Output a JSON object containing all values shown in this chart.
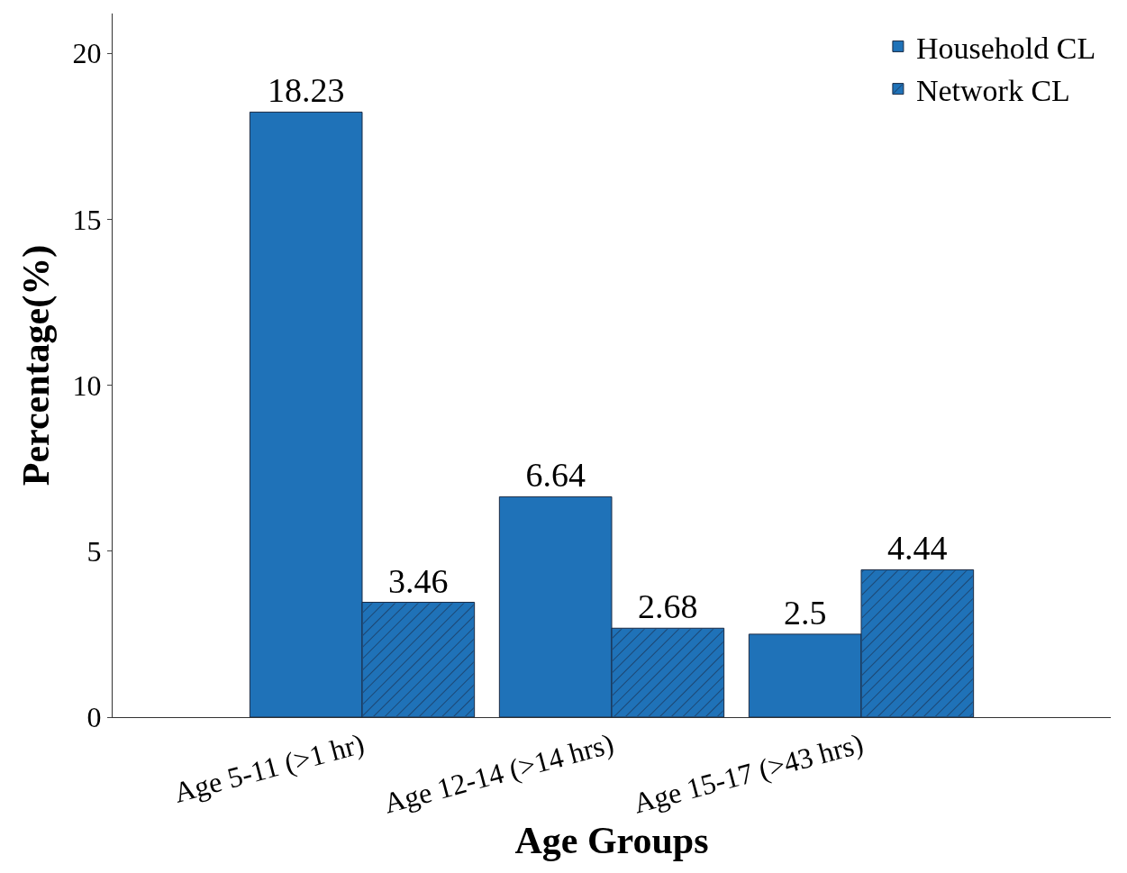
{
  "chart_data": {
    "type": "bar",
    "xlabel": "Age Groups",
    "ylabel": "Percentage(%)",
    "categories": [
      "Age 5-11 (>1 hr)",
      "Age 12-14 (>14 hrs)",
      "Age 15-17 (>43 hrs)"
    ],
    "series": [
      {
        "name": "Household CL",
        "color": "#1f72b8",
        "values": [
          18.23,
          6.64,
          2.5
        ]
      },
      {
        "name": "Network CL",
        "color": "#1f72b8",
        "values": [
          3.46,
          2.68,
          4.44
        ]
      }
    ],
    "ylim": [
      0,
      21.2
    ],
    "yticks": [
      0,
      5,
      10,
      15,
      20
    ],
    "data_labels": true,
    "legend": "top right"
  }
}
